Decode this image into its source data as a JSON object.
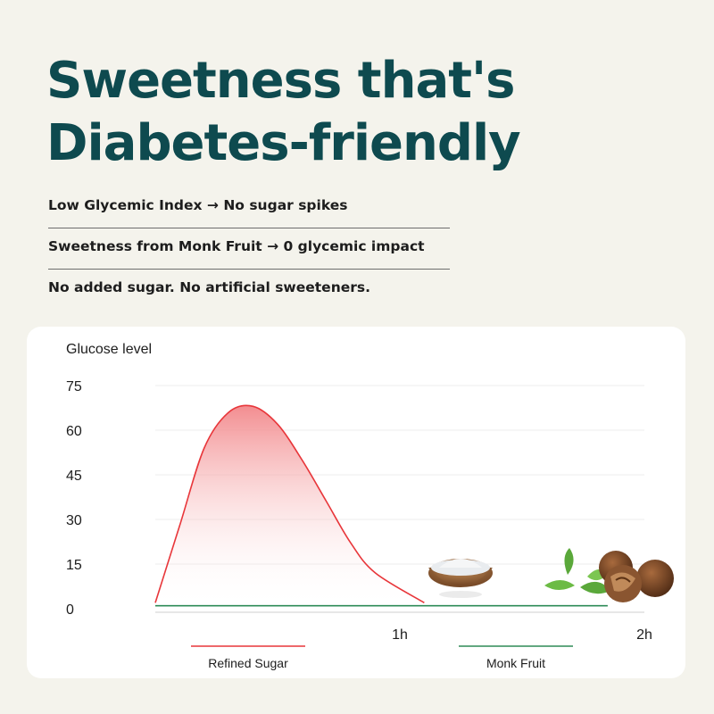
{
  "headline": {
    "line1": "Sweetness that's",
    "line2": "Diabetes-friendly"
  },
  "points": [
    "Low Glycemic Index → No sugar spikes",
    "Sweetness from Monk Fruit → 0 glycemic impact",
    "No added sugar. No artificial sweeteners."
  ],
  "colors": {
    "title": "#0e4a4f",
    "refined_sugar": "#e8363a",
    "monk_fruit": "#2e8b57"
  },
  "chart_data": {
    "type": "area",
    "ylabel": "Glucose level",
    "xlabel": "",
    "y_ticks": [
      0,
      15,
      30,
      45,
      60,
      75
    ],
    "ylim": [
      0,
      75
    ],
    "x_ticks": [
      "1h",
      "2h"
    ],
    "x_tick_values": [
      1,
      2
    ],
    "xlim": [
      0,
      2
    ],
    "grid": true,
    "legend_position": "bottom",
    "series": [
      {
        "name": "Refined Sugar",
        "color": "#e8363a",
        "x": [
          0,
          0.1,
          0.2,
          0.3,
          0.4,
          0.5,
          0.6,
          0.7,
          0.8,
          0.9,
          1.1
        ],
        "values": [
          2,
          28,
          54,
          66,
          68,
          62,
          50,
          36,
          22,
          12,
          2
        ]
      },
      {
        "name": "Monk Fruit",
        "color": "#2e8b57",
        "x": [
          0,
          0.5,
          1,
          1.5,
          1.85
        ],
        "values": [
          1,
          1,
          1,
          1,
          1
        ]
      }
    ]
  }
}
